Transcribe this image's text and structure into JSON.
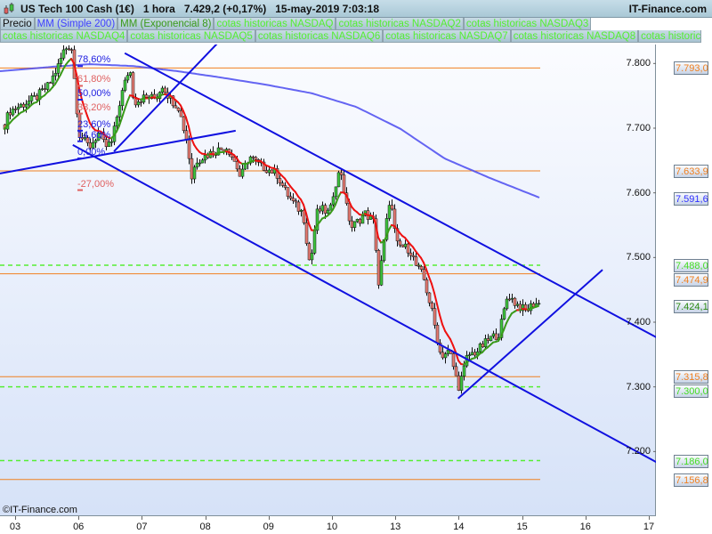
{
  "header": {
    "title": "US Tech 100 Cash (1€)   1 hora   7.429,2 (+0,17%)   15-may-2019 7:03:18",
    "brand": "IT-Finance.com"
  },
  "legend": {
    "row1": [
      {
        "label": "Precio",
        "color": "#111111"
      },
      {
        "label": "MM (Simple 200)",
        "color": "#4040ff"
      },
      {
        "label": "MM (Exponencial 8)",
        "color": "#3a9a1a"
      },
      {
        "label": "cotas historicas NASDAQ",
        "color": "#55ee33"
      },
      {
        "label": "cotas historicas NASDAQ2",
        "color": "#55ee33"
      },
      {
        "label": "cotas historicas NASDAQ3",
        "color": "#55ee33"
      }
    ],
    "row2": [
      {
        "label": "cotas historicas NASDAQ4",
        "color": "#55ee33"
      },
      {
        "label": "cotas historicas NASDAQ5",
        "color": "#55ee33"
      },
      {
        "label": "cotas historicas NASDAQ6",
        "color": "#55ee33"
      },
      {
        "label": "cotas historicas NASDAQ7",
        "color": "#55ee33"
      },
      {
        "label": "cotas historicas NASDAQ8",
        "color": "#55ee33"
      },
      {
        "label": "cotas historicas",
        "color": "#55ee33"
      }
    ]
  },
  "copyright": "©IT-Finance.com",
  "chart_data": {
    "type": "candlestick",
    "timeframe": "1 hora",
    "x_tick_labels": [
      "03",
      "06",
      "07",
      "08",
      "09",
      "10",
      "13",
      "14",
      "15",
      "16",
      "17"
    ],
    "y_tick_labels": [
      {
        "value": 7800,
        "label": "7.800"
      },
      {
        "value": 7700,
        "label": "7.700"
      },
      {
        "value": 7600,
        "label": "7.600"
      },
      {
        "value": 7500,
        "label": "7.500"
      },
      {
        "value": 7400,
        "label": "7.400"
      },
      {
        "value": 7300,
        "label": "7.300"
      },
      {
        "value": 7200,
        "label": "7.200"
      }
    ],
    "ylim": [
      7130,
      7860
    ],
    "price_path": [
      [
        -0.17,
        7705
      ],
      [
        -0.1,
        7726
      ],
      [
        0.04,
        7733
      ],
      [
        0.32,
        7747
      ],
      [
        0.53,
        7767
      ],
      [
        0.67,
        7795
      ],
      [
        0.77,
        7822
      ],
      [
        0.88,
        7829
      ],
      [
        0.96,
        7740
      ],
      [
        1.0,
        7692
      ],
      [
        1.1,
        7678
      ],
      [
        1.17,
        7671
      ],
      [
        1.31,
        7692
      ],
      [
        1.42,
        7671
      ],
      [
        1.52,
        7678
      ],
      [
        1.66,
        7747
      ],
      [
        1.8,
        7795
      ],
      [
        1.87,
        7740
      ],
      [
        2.01,
        7747
      ],
      [
        2.22,
        7747
      ],
      [
        2.32,
        7767
      ],
      [
        2.43,
        7747
      ],
      [
        2.57,
        7733
      ],
      [
        2.71,
        7678
      ],
      [
        2.78,
        7623
      ],
      [
        2.85,
        7650
      ],
      [
        2.99,
        7657
      ],
      [
        3.13,
        7664
      ],
      [
        3.34,
        7671
      ],
      [
        3.48,
        7644
      ],
      [
        3.55,
        7623
      ],
      [
        3.69,
        7657
      ],
      [
        3.83,
        7644
      ],
      [
        3.97,
        7637
      ],
      [
        4.12,
        7630
      ],
      [
        4.26,
        7602
      ],
      [
        4.4,
        7582
      ],
      [
        4.54,
        7568
      ],
      [
        4.65,
        7485
      ],
      [
        4.75,
        7568
      ],
      [
        4.82,
        7575
      ],
      [
        4.96,
        7568
      ],
      [
        5.03,
        7609
      ],
      [
        5.13,
        7637
      ],
      [
        5.24,
        7568
      ],
      [
        5.31,
        7547
      ],
      [
        5.52,
        7568
      ],
      [
        5.66,
        7554
      ],
      [
        5.73,
        7458
      ],
      [
        5.8,
        7513
      ],
      [
        5.91,
        7595
      ],
      [
        6.01,
        7520
      ],
      [
        6.22,
        7513
      ],
      [
        6.33,
        7485
      ],
      [
        6.43,
        7472
      ],
      [
        6.57,
        7417
      ],
      [
        6.71,
        7348
      ],
      [
        6.85,
        7355
      ],
      [
        6.99,
        7300
      ],
      [
        7.06,
        7320
      ],
      [
        7.13,
        7348
      ],
      [
        7.28,
        7355
      ],
      [
        7.49,
        7375
      ],
      [
        7.63,
        7382
      ],
      [
        7.77,
        7444
      ],
      [
        7.88,
        7430
      ],
      [
        8.05,
        7417
      ],
      [
        8.19,
        7430
      ],
      [
        8.29,
        7427
      ]
    ],
    "sma200": [
      [
        -0.24,
        7788
      ],
      [
        0.6,
        7795
      ],
      [
        1.17,
        7799
      ],
      [
        1.87,
        7796
      ],
      [
        2.57,
        7788
      ],
      [
        3.27,
        7778
      ],
      [
        3.97,
        7767
      ],
      [
        4.68,
        7754
      ],
      [
        5.38,
        7733
      ],
      [
        6.08,
        7699
      ],
      [
        6.78,
        7653
      ],
      [
        7.49,
        7623
      ],
      [
        8.29,
        7592
      ]
    ],
    "ema_period": 8,
    "trendlines": [
      {
        "from": [
          1.73,
          7816
        ],
        "to": [
          10.15,
          7375
        ]
      },
      {
        "from": [
          0.91,
          7674
        ],
        "to": [
          10.13,
          7183
        ]
      },
      {
        "from": [
          -0.24,
          7630
        ],
        "to": [
          3.48,
          7696
        ]
      },
      {
        "from": [
          1.56,
          7664
        ],
        "to": [
          3.2,
          7832
        ]
      },
      {
        "from": [
          6.99,
          7282
        ],
        "to": [
          9.27,
          7481
        ]
      }
    ],
    "fibonacci": {
      "low": 7661.5,
      "high": 7843,
      "levels": [
        {
          "pct": 0.786,
          "label": "78,60%",
          "color": "#2020e0"
        },
        {
          "pct": 0.618,
          "label": "61,80%",
          "color": "#e06060"
        },
        {
          "pct": 0.5,
          "label": "50,00%",
          "color": "#2020e0"
        },
        {
          "pct": 0.382,
          "label": "38,20%",
          "color": "#e06060"
        },
        {
          "pct": 0.236,
          "label": "23,60%",
          "color": "#2020e0"
        },
        {
          "pct": 0.146,
          "label": "14,60%",
          "color": "#2020e0"
        },
        {
          "pct": 0.0,
          "label": "0,00%",
          "color": "#2020e0"
        },
        {
          "pct": -0.27,
          "label": "-27,00%",
          "color": "#e06060"
        }
      ]
    },
    "horizontal_levels": [
      {
        "value": 7793.0,
        "label": "7.793,0",
        "color": "#f08020",
        "style": "solid"
      },
      {
        "value": 7633.9,
        "label": "7.633,9",
        "color": "#f08020",
        "style": "solid"
      },
      {
        "value": 7488.0,
        "label": "7.488,0",
        "color": "#55ee33",
        "style": "dashed"
      },
      {
        "value": 7474.9,
        "label": "7.474,9",
        "color": "#f08020",
        "style": "solid"
      },
      {
        "value": 7315.8,
        "label": "7.315,8",
        "color": "#f08020",
        "style": "solid"
      },
      {
        "value": 7300.0,
        "label": "7.300,0",
        "color": "#55ee33",
        "style": "dashed"
      },
      {
        "value": 7186.0,
        "label": "7.186,0",
        "color": "#55ee33",
        "style": "dashed"
      },
      {
        "value": 7156.8,
        "label": "7.156,8",
        "color": "#f08020",
        "style": "solid"
      }
    ],
    "last_values": [
      {
        "value": 7591.6,
        "label": "7.591,6",
        "color": "#3030ff",
        "series": "MM (Simple 200)"
      },
      {
        "value": 7424.1,
        "label": "7.424,1",
        "color": "#2a8a10",
        "series": "MM (Exponencial 8)"
      }
    ],
    "colors": {
      "up": "#3ec43e",
      "down": "#e57b72",
      "sma": "#4a4af0",
      "ema_up": "#3a9a1a",
      "ema_down": "#ee1111",
      "trend": "#1010e0"
    }
  }
}
